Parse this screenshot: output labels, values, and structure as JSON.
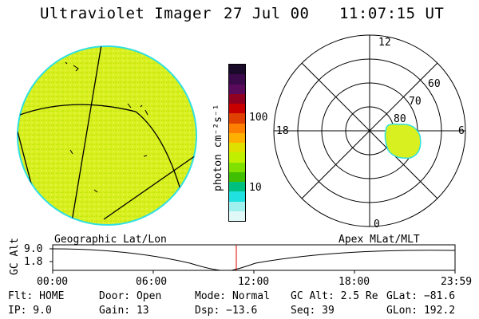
{
  "header": {
    "instrument": "Ultraviolet Imager",
    "date": "27 Jul 00",
    "time": "11:07:15 UT"
  },
  "colorbar": {
    "label": "photon cm⁻²s⁻¹",
    "ticks": [
      "100",
      "10"
    ],
    "colors": [
      "#1a0a2a",
      "#3a0a4a",
      "#5a0a5a",
      "#900020",
      "#c80000",
      "#e04000",
      "#ff8000",
      "#ffb000",
      "#e0e000",
      "#c0f000",
      "#80e000",
      "#40c000",
      "#00c080",
      "#20e0e0",
      "#a0f0f0",
      "#e0f8f8"
    ]
  },
  "polar": {
    "ring_labels": [
      "60",
      "70",
      "80"
    ],
    "mlt_labels": {
      "top": "12",
      "left": "18",
      "right": "6",
      "bottom": "0"
    }
  },
  "timeline": {
    "left_title": "Geographic Lat/Lon",
    "right_title": "Apex MLat/MLT",
    "y_axis_label": "GC Alt",
    "y_ticks": [
      "9.0",
      "1.8"
    ],
    "x_ticks": [
      "00:00",
      "06:00",
      "12:00",
      "18:00",
      "23:59"
    ]
  },
  "info": {
    "flt": "Flt: HOME",
    "ip": "IP:  9.0",
    "door": "Door: Open",
    "gain": "Gain: 13",
    "mode": "Mode: Normal",
    "dsp": "Dsp:  −13.6",
    "gcalt": "GC Alt: 2.5 Re",
    "seq": "Seq: 39",
    "glat": "GLat: −81.6",
    "glon": "GLon: 192.2"
  },
  "colors": {
    "disk_fill": "#d8f020",
    "disk_edge": "#30e0e0",
    "auroral_oval": "#d8f020",
    "marker_line": "#e00000"
  }
}
